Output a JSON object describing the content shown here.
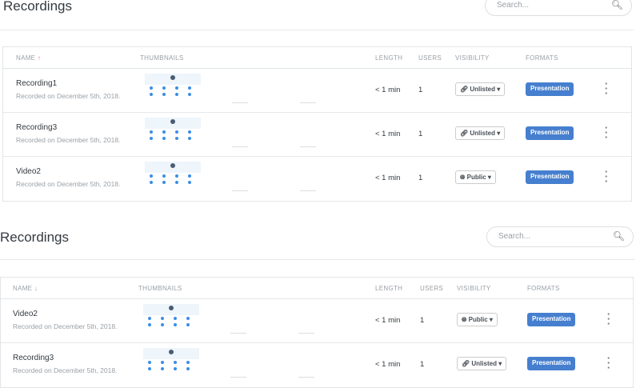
{
  "sections": [
    {
      "title": "Recordings",
      "search_placeholder": "Search...",
      "sort_arrow": "↑",
      "headers": {
        "name": "NAME",
        "thumbnails": "THUMBNAILS",
        "length": "LENGTH",
        "users": "USERS",
        "visibility": "VISIBILITY",
        "formats": "FORMATS"
      },
      "rows": [
        {
          "name": "Recording1",
          "recorded": "Recorded on December 5th, 2018.",
          "length": "< 1 min",
          "users": "1",
          "visibility": "Unlisted",
          "visibility_icon": "link-icon",
          "format": "Presentation"
        },
        {
          "name": "Recording3",
          "recorded": "Recorded on December 5th, 2018.",
          "length": "< 1 min",
          "users": "1",
          "visibility": "Unlisted",
          "visibility_icon": "link-icon",
          "format": "Presentation"
        },
        {
          "name": "Video2",
          "recorded": "Recorded on December 5th, 2018.",
          "length": "< 1 min",
          "users": "1",
          "visibility": "Public",
          "visibility_icon": "globe-icon",
          "format": "Presentation"
        }
      ]
    },
    {
      "title": "Recordings",
      "search_placeholder": "Search...",
      "sort_arrow": "↓",
      "headers": {
        "name": "NAME",
        "thumbnails": "THUMBNAILS",
        "length": "LENGTH",
        "users": "USERS",
        "visibility": "VISIBILITY",
        "formats": "FORMATS"
      },
      "rows": [
        {
          "name": "Video2",
          "recorded": "Recorded on December 5th, 2018.",
          "length": "< 1 min",
          "users": "1",
          "visibility": "Public",
          "visibility_icon": "globe-icon",
          "format": "Presentation"
        },
        {
          "name": "Recording3",
          "recorded": "Recorded on December 5th, 2018.",
          "length": "< 1 min",
          "users": "1",
          "visibility": "Unlisted",
          "visibility_icon": "link-icon",
          "format": "Presentation"
        }
      ]
    }
  ],
  "colors": {
    "accent": "#467fcf",
    "sort_up": "#e8758a"
  }
}
